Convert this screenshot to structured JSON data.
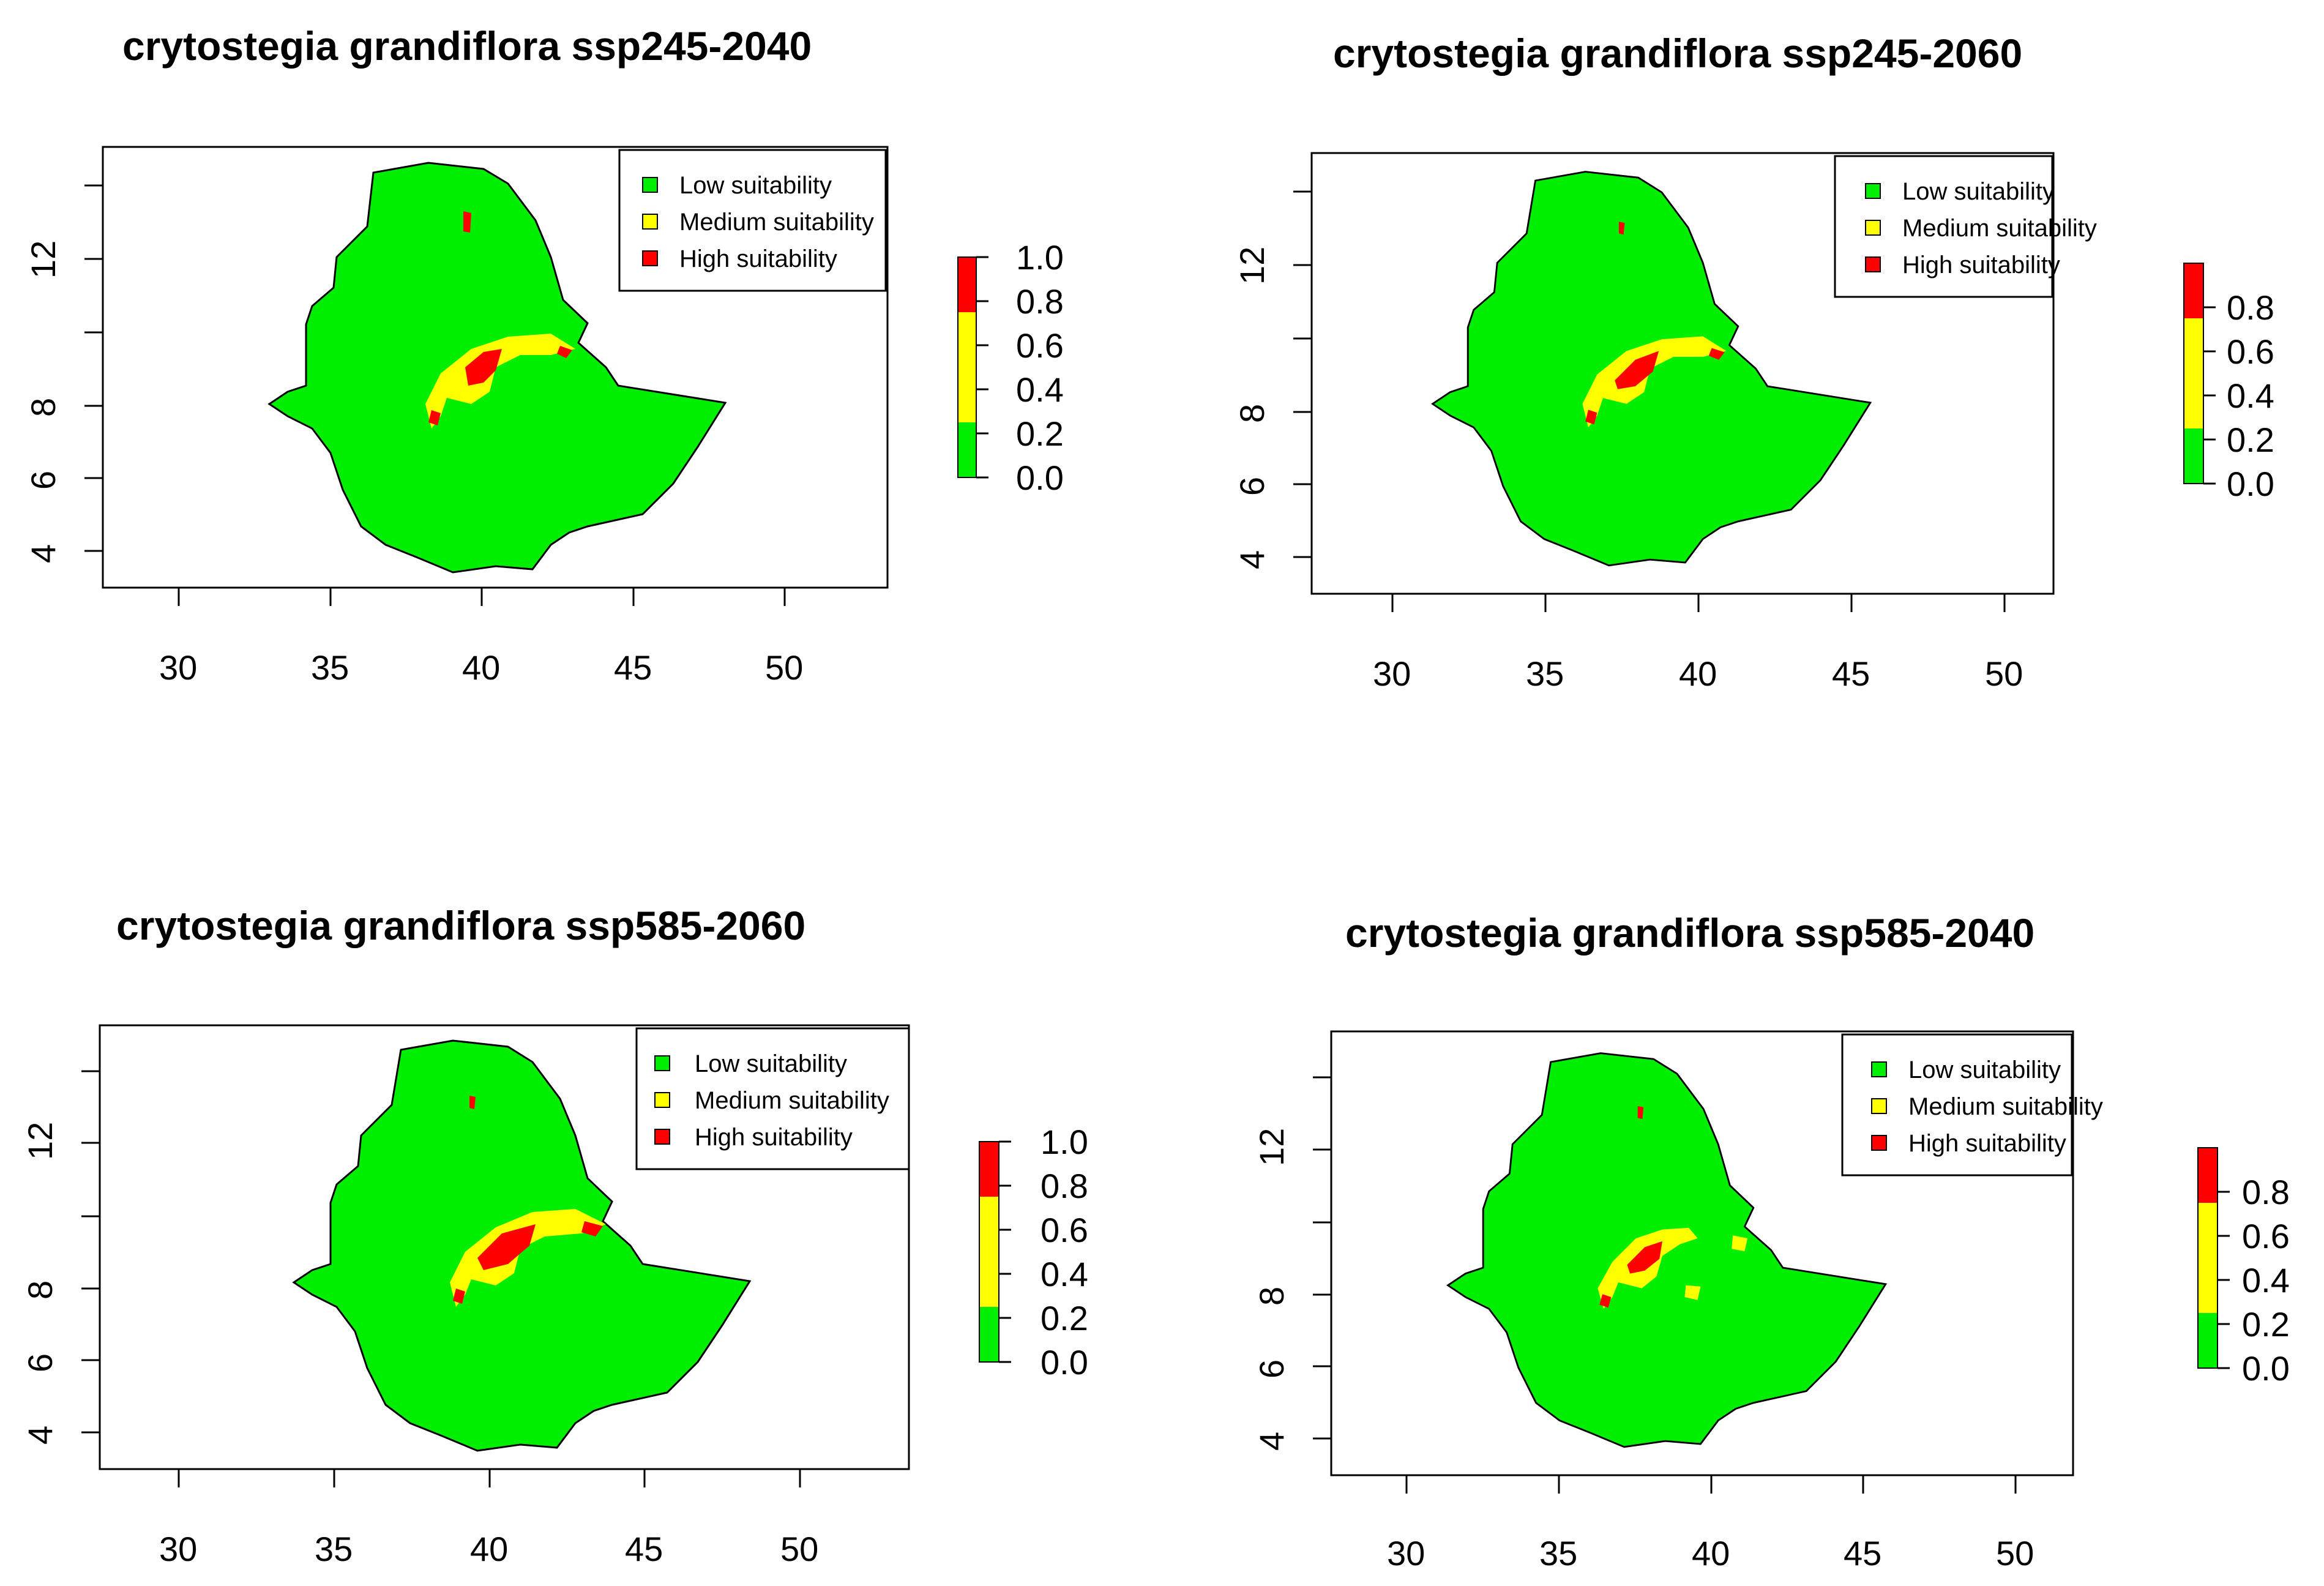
{
  "panels": [
    {
      "title": "crytostegia grandiflora ssp245-2040",
      "x_ticks": [
        "30",
        "35",
        "40",
        "45",
        "50"
      ],
      "y_ticks": [
        "4",
        "6",
        "8",
        "12"
      ],
      "legend": [
        "Low suitability",
        "Medium suitability",
        "High suitability"
      ],
      "colorbar_ticks": [
        "1.0",
        "0.8",
        "0.6",
        "0.4",
        "0.2",
        "0.0"
      ]
    },
    {
      "title": "crytostegia grandiflora ssp245-2060",
      "x_ticks": [
        "30",
        "35",
        "40",
        "45",
        "50"
      ],
      "y_ticks": [
        "4",
        "6",
        "8",
        "12"
      ],
      "legend": [
        "Low suitability",
        "Medium suitability",
        "High suitability"
      ],
      "colorbar_ticks": [
        "0.8",
        "0.6",
        "0.4",
        "0.2",
        "0.0"
      ]
    },
    {
      "title": "crytostegia grandiflora ssp585-2060",
      "x_ticks": [
        "30",
        "35",
        "40",
        "45",
        "50"
      ],
      "y_ticks": [
        "4",
        "6",
        "8",
        "12"
      ],
      "legend": [
        "Low suitability",
        "Medium suitability",
        "High suitability"
      ],
      "colorbar_ticks": [
        "1.0",
        "0.8",
        "0.6",
        "0.4",
        "0.2",
        "0.0"
      ]
    },
    {
      "title": "crytostegia grandiflora ssp585-2040",
      "x_ticks": [
        "30",
        "35",
        "40",
        "45",
        "50"
      ],
      "y_ticks": [
        "4",
        "6",
        "8",
        "12"
      ],
      "legend": [
        "Low suitability",
        "Medium suitability",
        "High suitability"
      ],
      "colorbar_ticks": [
        "0.8",
        "0.6",
        "0.4",
        "0.2",
        "0.0"
      ]
    }
  ],
  "colors": {
    "low": "#00ee00",
    "medium": "#ffff00",
    "high": "#ff0000",
    "outline": "#000000"
  }
}
